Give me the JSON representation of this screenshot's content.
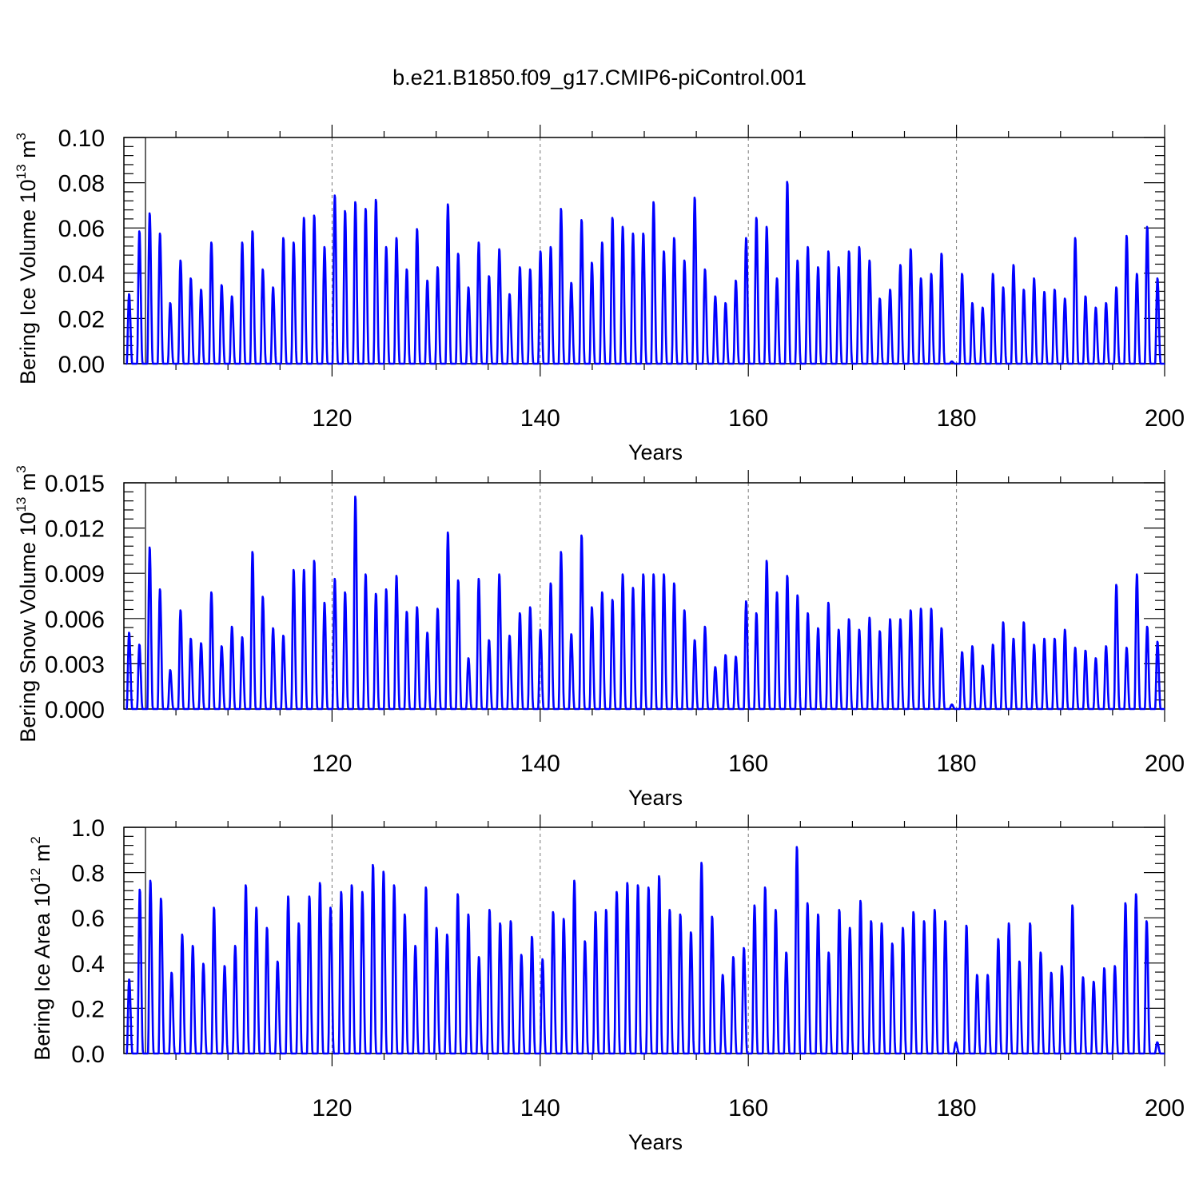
{
  "title": "b.e21.B1850.f09_g17.CMIP6-piControl.001",
  "chart_data": [
    {
      "type": "line",
      "id": "ice-volume",
      "ylabel_main": "Bering Ice Volume 10",
      "ylabel_exp": "13",
      "ylabel_unit": " m",
      "ylabel_unit_exp": "3",
      "xlabel": "Years",
      "xlim": [
        100,
        200
      ],
      "ylim": [
        0,
        0.1
      ],
      "xticks": [
        "120",
        "140",
        "160",
        "180",
        "200"
      ],
      "yticks": [
        "0.00",
        "0.02",
        "0.04",
        "0.06",
        "0.08",
        "0.10"
      ],
      "line_color": "#0000ff",
      "seasonal_maxima": [
        0.031,
        0.059,
        0.067,
        0.058,
        0.027,
        0.046,
        0.038,
        0.033,
        0.054,
        0.035,
        0.03,
        0.054,
        0.059,
        0.042,
        0.034,
        0.056,
        0.054,
        0.065,
        0.066,
        0.052,
        0.075,
        0.068,
        0.072,
        0.069,
        0.073,
        0.052,
        0.056,
        0.042,
        0.06,
        0.037,
        0.043,
        0.071,
        0.049,
        0.034,
        0.054,
        0.039,
        0.051,
        0.031,
        0.043,
        0.042,
        0.05,
        0.052,
        0.069,
        0.036,
        0.064,
        0.045,
        0.054,
        0.065,
        0.061,
        0.058,
        0.058,
        0.072,
        0.05,
        0.056,
        0.046,
        0.074,
        0.042,
        0.03,
        0.027,
        0.037,
        0.056,
        0.065,
        0.061,
        0.038,
        0.081,
        0.046,
        0.052,
        0.043,
        0.05,
        0.043,
        0.05,
        0.052,
        0.046,
        0.029,
        0.033,
        0.044,
        0.051,
        0.038,
        0.04,
        0.049,
        0.001,
        0.04,
        0.027,
        0.025,
        0.04,
        0.034,
        0.044,
        0.033,
        0.038,
        0.032,
        0.033,
        0.029,
        0.056,
        0.03,
        0.025,
        0.027,
        0.034,
        0.057,
        0.04,
        0.061,
        0.038
      ]
    },
    {
      "type": "line",
      "id": "snow-volume",
      "ylabel_main": "Bering Snow Volume 10",
      "ylabel_exp": "13",
      "ylabel_unit": " m",
      "ylabel_unit_exp": "3",
      "xlabel": "Years",
      "xlim": [
        100,
        200
      ],
      "ylim": [
        0,
        0.015
      ],
      "xticks": [
        "120",
        "140",
        "160",
        "180",
        "200"
      ],
      "yticks": [
        "0.000",
        "0.003",
        "0.006",
        "0.009",
        "0.012",
        "0.015"
      ],
      "line_color": "#0000ff",
      "seasonal_maxima": [
        0.0051,
        0.0043,
        0.0108,
        0.008,
        0.0026,
        0.0066,
        0.0047,
        0.0044,
        0.0078,
        0.0042,
        0.0055,
        0.0048,
        0.0105,
        0.0075,
        0.0054,
        0.0049,
        0.0093,
        0.0093,
        0.0099,
        0.0071,
        0.0087,
        0.0078,
        0.0142,
        0.009,
        0.0077,
        0.008,
        0.0089,
        0.0065,
        0.0068,
        0.0051,
        0.0067,
        0.0118,
        0.0086,
        0.0034,
        0.0087,
        0.0046,
        0.009,
        0.0049,
        0.0064,
        0.0068,
        0.0053,
        0.0084,
        0.0105,
        0.005,
        0.0116,
        0.0068,
        0.0078,
        0.0073,
        0.009,
        0.0081,
        0.009,
        0.009,
        0.009,
        0.0084,
        0.0066,
        0.0046,
        0.0055,
        0.0028,
        0.0036,
        0.0035,
        0.0072,
        0.0064,
        0.0099,
        0.0078,
        0.0089,
        0.0076,
        0.0064,
        0.0054,
        0.0071,
        0.0053,
        0.006,
        0.0053,
        0.0061,
        0.0052,
        0.006,
        0.006,
        0.0066,
        0.0067,
        0.0067,
        0.0054,
        0.0003,
        0.0038,
        0.0042,
        0.0029,
        0.0043,
        0.0058,
        0.0047,
        0.0058,
        0.0043,
        0.0047,
        0.0047,
        0.0053,
        0.0041,
        0.0039,
        0.0034,
        0.0042,
        0.0083,
        0.0041,
        0.009,
        0.0055,
        0.0045
      ]
    },
    {
      "type": "line",
      "id": "ice-area",
      "ylabel_main": "Bering Ice Area 10",
      "ylabel_exp": "12",
      "ylabel_unit": " m",
      "ylabel_unit_exp": "2",
      "xlabel": "Years",
      "xlim": [
        100,
        200
      ],
      "ylim": [
        0,
        1.0
      ],
      "xticks": [
        "120",
        "140",
        "160",
        "180",
        "200"
      ],
      "yticks": [
        "0.0",
        "0.2",
        "0.4",
        "0.6",
        "0.8",
        "1.0"
      ],
      "line_color": "#0000ff",
      "seasonal_maxima": [
        0.33,
        0.73,
        0.77,
        0.69,
        0.36,
        0.53,
        0.48,
        0.4,
        0.65,
        0.39,
        0.48,
        0.75,
        0.65,
        0.56,
        0.41,
        0.7,
        0.58,
        0.7,
        0.76,
        0.65,
        0.72,
        0.75,
        0.72,
        0.84,
        0.81,
        0.75,
        0.62,
        0.48,
        0.74,
        0.56,
        0.53,
        0.71,
        0.62,
        0.43,
        0.64,
        0.58,
        0.59,
        0.44,
        0.52,
        0.42,
        0.63,
        0.6,
        0.77,
        0.5,
        0.63,
        0.64,
        0.72,
        0.76,
        0.75,
        0.74,
        0.79,
        0.64,
        0.62,
        0.54,
        0.85,
        0.61,
        0.35,
        0.43,
        0.47,
        0.66,
        0.74,
        0.64,
        0.45,
        0.92,
        0.67,
        0.62,
        0.45,
        0.64,
        0.56,
        0.68,
        0.59,
        0.58,
        0.49,
        0.56,
        0.63,
        0.59,
        0.64,
        0.59,
        0.05,
        0.57,
        0.35,
        0.35,
        0.51,
        0.58,
        0.41,
        0.58,
        0.45,
        0.36,
        0.39,
        0.66,
        0.34,
        0.32,
        0.38,
        0.39,
        0.67,
        0.71,
        0.59,
        0.05
      ]
    }
  ]
}
